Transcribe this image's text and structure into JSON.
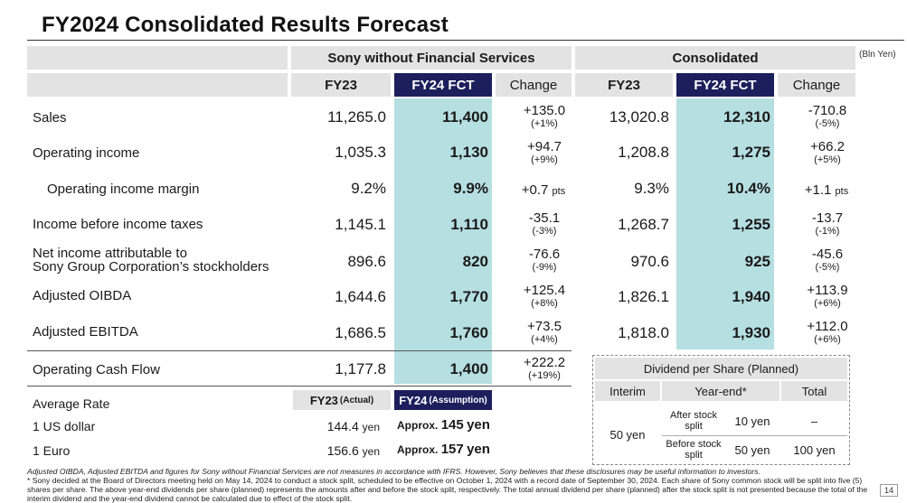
{
  "title": "FY2024 Consolidated Results Forecast",
  "unit": "(Bln Yen)",
  "groups": {
    "sony_wo_fs": "Sony without Financial Services",
    "consolidated": "Consolidated"
  },
  "columns": {
    "fy23": "FY23",
    "fy24": "FY24 FCT",
    "change": "Change"
  },
  "rows": [
    {
      "label": "Sales",
      "a_fy23": "11,265.0",
      "a_fy24": "11,400",
      "a_chg": "+135.0",
      "a_pct": "(+1%)",
      "c_fy23": "13,020.8",
      "c_fy24": "12,310",
      "c_chg": "-710.8",
      "c_pct": "(-5%)"
    },
    {
      "label": "Operating income",
      "a_fy23": "1,035.3",
      "a_fy24": "1,130",
      "a_chg": "+94.7",
      "a_pct": "(+9%)",
      "c_fy23": "1,208.8",
      "c_fy24": "1,275",
      "c_chg": "+66.2",
      "c_pct": "(+5%)"
    },
    {
      "label": "Operating income margin",
      "a_fy23": "9.2%",
      "a_fy24": "9.9%",
      "a_chg": "+0.7",
      "a_unit": "pts",
      "c_fy23": "9.3%",
      "c_fy24": "10.4%",
      "c_chg": "+1.1",
      "c_unit": "pts"
    },
    {
      "label": "Income before income taxes",
      "a_fy23": "1,145.1",
      "a_fy24": "1,110",
      "a_chg": "-35.1",
      "a_pct": "(-3%)",
      "c_fy23": "1,268.7",
      "c_fy24": "1,255",
      "c_chg": "-13.7",
      "c_pct": "(-1%)"
    },
    {
      "label_line1": "Net income attributable to",
      "label_line2": "Sony Group Corporation’s stockholders",
      "a_fy23": "896.6",
      "a_fy24": "820",
      "a_chg": "-76.6",
      "a_pct": "(-9%)",
      "c_fy23": "970.6",
      "c_fy24": "925",
      "c_chg": "-45.6",
      "c_pct": "(-5%)"
    },
    {
      "label": "Adjusted OIBDA",
      "a_fy23": "1,644.6",
      "a_fy24": "1,770",
      "a_chg": "+125.4",
      "a_pct": "(+8%)",
      "c_fy23": "1,826.1",
      "c_fy24": "1,940",
      "c_chg": "+113.9",
      "c_pct": "(+6%)"
    },
    {
      "label": "Adjusted EBITDA",
      "a_fy23": "1,686.5",
      "a_fy24": "1,760",
      "a_chg": "+73.5",
      "a_pct": "(+4%)",
      "c_fy23": "1,818.0",
      "c_fy24": "1,930",
      "c_chg": "+112.0",
      "c_pct": "(+6%)"
    },
    {
      "label": "Operating Cash Flow",
      "a_fy23": "1,177.8",
      "a_fy24": "1,400",
      "a_chg": "+222.2",
      "a_pct": "(+19%)"
    }
  ],
  "rates": {
    "label": "Average Rate",
    "fy23_hdr": "FY23",
    "fy23_sub": "(Actual)",
    "fy24_hdr": "FY24",
    "fy24_sub": "(Assumption)",
    "usd": {
      "label": "1 US dollar",
      "fy23_num": "144.4",
      "fy23_unit": "yen",
      "approx": "Approx.",
      "fy24_num": "145",
      "fy24_unit": "yen"
    },
    "eur": {
      "label": "1 Euro",
      "fy23_num": "156.6",
      "fy23_unit": "yen",
      "approx": "Approx.",
      "fy24_num": "157",
      "fy24_unit": "yen"
    }
  },
  "dividend": {
    "title": "Dividend per Share (Planned)",
    "interim_hdr": "Interim",
    "yearend_hdr": "Year-end*",
    "total_hdr": "Total",
    "interim_val": "50 yen",
    "after_label": "After stock split",
    "after_val": "10 yen",
    "after_total": "–",
    "before_label": "Before stock split",
    "before_val": "50 yen",
    "before_total": "100 yen"
  },
  "footnotes": {
    "note1": "Adjusted OIBDA, Adjusted EBITDA and figures for Sony without Financial Services are not measures in accordance with IFRS. However, Sony believes that these disclosures may be useful information to investors.",
    "note2": "* Sony decided at the Board of Directors meeting held on May 14, 2024 to conduct a stock split, scheduled to be effective on October 1, 2024 with a record date of September 30, 2024. Each share of Sony common stock will be split into five (5) shares per share. The above year-end dividends per share (planned) represents the amounts after and before the stock split, respectively. The total annual dividend per share (planned) after the stock split is not presented because the total of the interim dividend and the year-end dividend cannot be calculated due to effect of the stock split."
  },
  "page_number": "14"
}
